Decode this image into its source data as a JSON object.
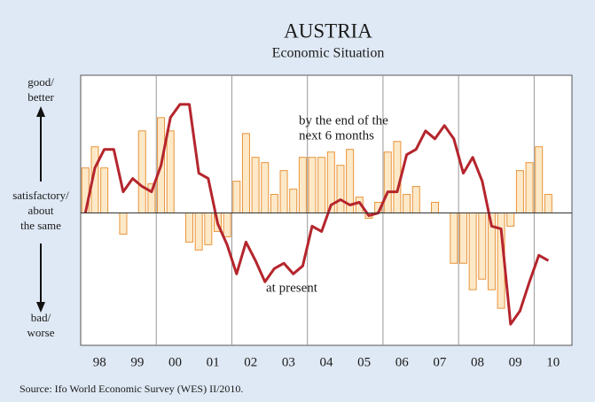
{
  "chart_data": {
    "type": "bar_line",
    "title": "AUSTRIA",
    "subtitle": "Economic Situation",
    "y_labels": {
      "top": [
        "good/",
        "better"
      ],
      "middle": [
        "satisfactory/",
        "about",
        "the same"
      ],
      "bottom": [
        "bad/",
        "worse"
      ]
    },
    "annotations": [
      [
        "by the end of the",
        "next 6 months"
      ],
      [
        "at present"
      ]
    ],
    "source": "Source: Ifo World Economic Survey (WES) II/2010.",
    "categories": [
      null,
      "98",
      null,
      null,
      null,
      "99",
      null,
      null,
      null,
      "00",
      null,
      null,
      null,
      "01",
      null,
      null,
      null,
      "02",
      null,
      null,
      null,
      "03",
      null,
      null,
      null,
      "04",
      null,
      null,
      null,
      "05",
      null,
      null,
      null,
      "06",
      null,
      null,
      null,
      "07",
      null,
      null,
      null,
      "08",
      null,
      null,
      null,
      "09",
      null,
      null,
      null,
      "10",
      null,
      null
    ],
    "ylim": [
      -50,
      52
    ],
    "series": [
      {
        "kind": "bar",
        "color": "#e8943a",
        "fill": "#fde9c8",
        "values": [
          17,
          25,
          17,
          null,
          -8,
          null,
          31,
          11,
          36,
          31,
          null,
          -11,
          -14,
          -12,
          -7,
          -9,
          12,
          30,
          21,
          19,
          7,
          16,
          9,
          21,
          21,
          21,
          23,
          18,
          24,
          6,
          -2,
          4,
          23,
          27,
          7,
          10,
          null,
          4,
          null,
          -19,
          -19,
          -29,
          -25,
          -29,
          -36,
          -5,
          16,
          19,
          25,
          7,
          null,
          null
        ]
      },
      {
        "kind": "line",
        "color": "#b5252d",
        "values": [
          0,
          17,
          24,
          24,
          8,
          13,
          10,
          8,
          18,
          36,
          41,
          41,
          15,
          13,
          -4,
          -12,
          -23,
          -11,
          -18,
          -26,
          -21,
          -19,
          -23,
          -20,
          -5,
          -7,
          3,
          5,
          3,
          4,
          -1,
          0,
          8,
          8,
          22,
          24,
          31,
          28,
          33,
          28,
          15,
          21,
          12,
          -5,
          -6,
          -42,
          -37,
          -26,
          -16,
          -18,
          null,
          null
        ]
      }
    ]
  }
}
